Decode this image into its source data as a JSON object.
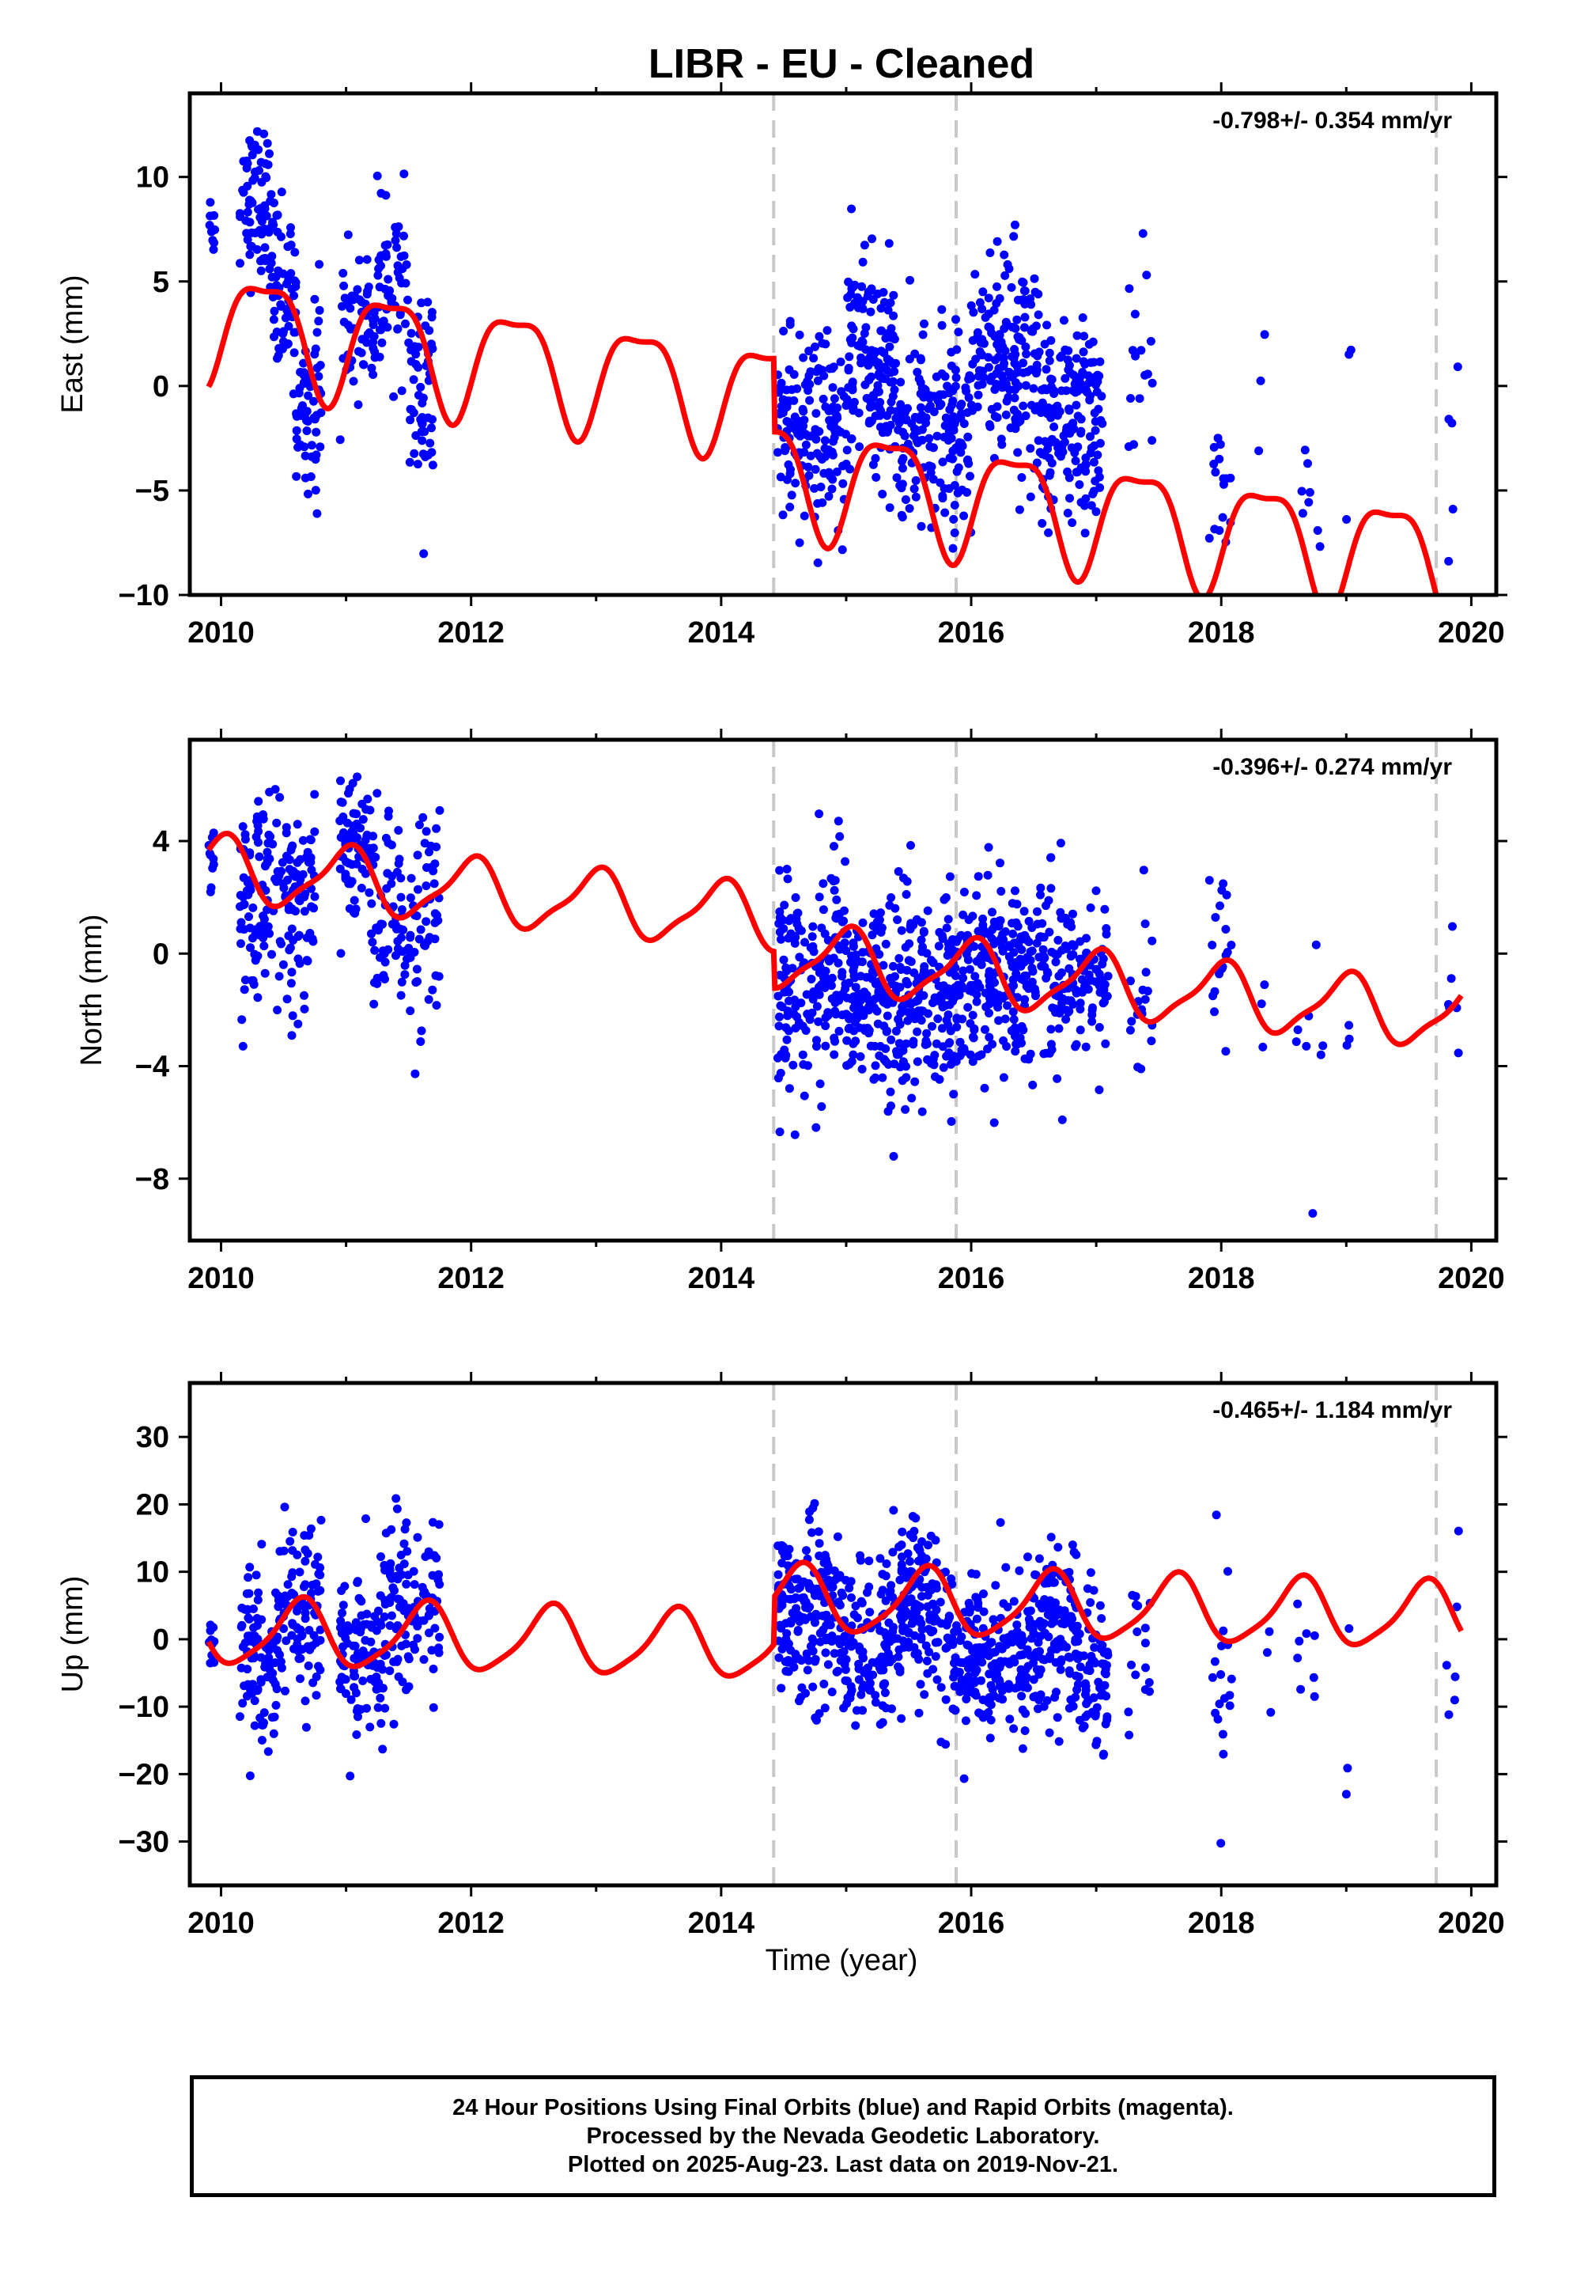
{
  "title": "LIBR  - EU - Cleaned",
  "xlabel": "Time (year)",
  "footer": {
    "line1": "24 Hour Positions Using Final Orbits (blue) and Rapid Orbits (magenta).",
    "line2": "Processed by the Nevada Geodetic Laboratory.",
    "line3": "Plotted on 2025-Aug-23. Last data on 2019-Nov-21."
  },
  "colors": {
    "data": "#0000ff",
    "model": "#ff0000",
    "steps": "#c8c8c8",
    "frame": "#000000"
  },
  "chart_data": [
    {
      "type": "scatter",
      "name": "East",
      "ylabel": "East (mm)",
      "rate_label": "-0.798+/- 0.354 mm/yr",
      "xlim": [
        2009.75,
        2020.2
      ],
      "ylim": [
        -10,
        14
      ],
      "xticks": [
        2010,
        2012,
        2014,
        2016,
        2018,
        2020
      ],
      "yticks": [
        -10,
        -5,
        0,
        5,
        10
      ],
      "ytick_labels": [
        "−10",
        "−5",
        "0",
        "5",
        "10"
      ],
      "step_lines": [
        2014.42,
        2015.88,
        2019.72
      ],
      "model": {
        "offset": 3.0,
        "trend": -0.8,
        "ref": 2010,
        "annual": 2.6,
        "annual_phase": 2010.35,
        "semiannual": 0.8,
        "semi_phase": 2010.1,
        "step_year": 2014.42,
        "step": -3.5
      },
      "clusters": [
        {
          "x0": 2009.9,
          "x1": 2009.95,
          "n": 10,
          "mean": 7.8,
          "sd": 0.8
        },
        {
          "x0": 2010.15,
          "x1": 2010.4,
          "n": 70,
          "mean": 8.8,
          "sd": 1.8
        },
        {
          "x0": 2010.4,
          "x1": 2010.6,
          "n": 60,
          "mean": 4.5,
          "sd": 2.2
        },
        {
          "x0": 2010.6,
          "x1": 2010.8,
          "n": 60,
          "mean": -0.8,
          "sd": 2.3
        },
        {
          "x0": 2010.95,
          "x1": 2011.25,
          "n": 55,
          "mean": 3.0,
          "sd": 1.6
        },
        {
          "x0": 2011.25,
          "x1": 2011.5,
          "n": 55,
          "mean": 4.6,
          "sd": 2.0
        },
        {
          "x0": 2011.5,
          "x1": 2011.7,
          "n": 55,
          "mean": -0.5,
          "sd": 2.6
        },
        {
          "x0": 2014.45,
          "x1": 2015.0,
          "n": 160,
          "mean": -2.2,
          "sd": 2.2
        },
        {
          "x0": 2015.0,
          "x1": 2015.4,
          "n": 150,
          "mean": 0.8,
          "sd": 2.5
        },
        {
          "x0": 2015.4,
          "x1": 2016.0,
          "n": 170,
          "mean": -2.2,
          "sd": 2.3
        },
        {
          "x0": 2016.0,
          "x1": 2016.55,
          "n": 170,
          "mean": 1.5,
          "sd": 2.6
        },
        {
          "x0": 2016.55,
          "x1": 2017.05,
          "n": 170,
          "mean": -2.2,
          "sd": 2.4
        },
        {
          "x0": 2017.25,
          "x1": 2017.45,
          "n": 16,
          "mean": 0.5,
          "sd": 3.0
        },
        {
          "x0": 2017.9,
          "x1": 2018.1,
          "n": 16,
          "mean": -4.0,
          "sd": 2.8
        },
        {
          "x0": 2018.25,
          "x1": 2018.35,
          "n": 3,
          "mean": 1.0,
          "sd": 2.5
        },
        {
          "x0": 2018.6,
          "x1": 2018.8,
          "n": 8,
          "mean": -5.0,
          "sd": 1.2
        },
        {
          "x0": 2019.0,
          "x1": 2019.05,
          "n": 3,
          "mean": -3.5,
          "sd": 3.0
        },
        {
          "x0": 2019.8,
          "x1": 2019.9,
          "n": 6,
          "mean": -2.8,
          "sd": 2.8
        }
      ]
    },
    {
      "type": "scatter",
      "name": "North",
      "ylabel": "North (mm)",
      "rate_label": "-0.396+/- 0.274 mm/yr",
      "xlim": [
        2009.75,
        2020.2
      ],
      "ylim": [
        -10.2,
        7.6
      ],
      "xticks": [
        2010,
        2012,
        2014,
        2016,
        2018,
        2020
      ],
      "yticks": [
        -8,
        -4,
        0,
        4
      ],
      "ytick_labels": [
        "−8",
        "−4",
        "0",
        "4"
      ],
      "step_lines": [
        2014.42,
        2015.88,
        2019.72
      ],
      "model": {
        "offset": 3.0,
        "trend": -0.4,
        "ref": 2010,
        "annual": 1.1,
        "annual_phase": 2010.0,
        "semiannual": 0.3,
        "semi_phase": 2010.1,
        "step_year": 2014.42,
        "step": -1.3
      },
      "clusters": [
        {
          "x0": 2009.9,
          "x1": 2009.95,
          "n": 10,
          "mean": 3.0,
          "sd": 0.6
        },
        {
          "x0": 2010.15,
          "x1": 2010.75,
          "n": 180,
          "mean": 1.8,
          "sd": 1.8
        },
        {
          "x0": 2010.95,
          "x1": 2011.2,
          "n": 70,
          "mean": 4.0,
          "sd": 1.2
        },
        {
          "x0": 2011.2,
          "x1": 2011.75,
          "n": 120,
          "mean": 1.3,
          "sd": 1.9
        },
        {
          "x0": 2014.45,
          "x1": 2015.0,
          "n": 170,
          "mean": -1.0,
          "sd": 2.2
        },
        {
          "x0": 2015.0,
          "x1": 2015.9,
          "n": 330,
          "mean": -1.8,
          "sd": 1.8
        },
        {
          "x0": 2015.9,
          "x1": 2017.1,
          "n": 360,
          "mean": -0.6,
          "sd": 1.6
        },
        {
          "x0": 2017.25,
          "x1": 2017.45,
          "n": 18,
          "mean": -1.8,
          "sd": 2.0
        },
        {
          "x0": 2017.9,
          "x1": 2018.1,
          "n": 18,
          "mean": 0.0,
          "sd": 1.5
        },
        {
          "x0": 2018.3,
          "x1": 2018.4,
          "n": 3,
          "mean": -1.2,
          "sd": 1.5
        },
        {
          "x0": 2018.6,
          "x1": 2018.85,
          "n": 8,
          "mean": -3.0,
          "sd": 3.0
        },
        {
          "x0": 2019.0,
          "x1": 2019.05,
          "n": 3,
          "mean": -2.4,
          "sd": 1.0
        },
        {
          "x0": 2019.8,
          "x1": 2019.9,
          "n": 6,
          "mean": -1.8,
          "sd": 1.5
        }
      ]
    },
    {
      "type": "scatter",
      "name": "Up",
      "ylabel": "Up (mm)",
      "rate_label": "-0.465+/- 1.184 mm/yr",
      "xlim": [
        2009.75,
        2020.2
      ],
      "ylim": [
        -36.5,
        38
      ],
      "xticks": [
        2010,
        2012,
        2014,
        2016,
        2018,
        2020
      ],
      "yticks": [
        -30,
        -20,
        -10,
        0,
        10,
        20,
        30
      ],
      "ytick_labels": [
        "−30",
        "−20",
        "−10",
        "0",
        "10",
        "20",
        "30"
      ],
      "step_lines": [
        2014.42,
        2015.88,
        2019.72
      ],
      "model": {
        "offset": 1.0,
        "trend": -0.47,
        "ref": 2010,
        "annual": 4.8,
        "annual_phase": 2010.63,
        "semiannual": 1.0,
        "semi_phase": 2010.2,
        "step_year": 2014.42,
        "step": 7.0
      },
      "clusters": [
        {
          "x0": 2009.9,
          "x1": 2009.95,
          "n": 10,
          "mean": -1.0,
          "sd": 3.5
        },
        {
          "x0": 2010.15,
          "x1": 2010.45,
          "n": 90,
          "mean": -3.0,
          "sd": 6.5
        },
        {
          "x0": 2010.45,
          "x1": 2010.8,
          "n": 100,
          "mean": 5.0,
          "sd": 6.0
        },
        {
          "x0": 2010.95,
          "x1": 2011.3,
          "n": 100,
          "mean": -3.5,
          "sd": 6.0
        },
        {
          "x0": 2011.3,
          "x1": 2011.75,
          "n": 110,
          "mean": 5.0,
          "sd": 7.0
        },
        {
          "x0": 2014.45,
          "x1": 2014.95,
          "n": 170,
          "mean": 4.0,
          "sd": 6.5
        },
        {
          "x0": 2014.95,
          "x1": 2015.35,
          "n": 120,
          "mean": -1.5,
          "sd": 6.0
        },
        {
          "x0": 2015.35,
          "x1": 2015.85,
          "n": 170,
          "mean": 4.5,
          "sd": 6.5
        },
        {
          "x0": 2015.85,
          "x1": 2016.45,
          "n": 180,
          "mean": -3.5,
          "sd": 5.5
        },
        {
          "x0": 2016.45,
          "x1": 2016.85,
          "n": 140,
          "mean": 1.5,
          "sd": 6.5
        },
        {
          "x0": 2016.85,
          "x1": 2017.1,
          "n": 70,
          "mean": -5.0,
          "sd": 6.0
        },
        {
          "x0": 2017.25,
          "x1": 2017.45,
          "n": 16,
          "mean": -1.0,
          "sd": 8.0
        },
        {
          "x0": 2017.9,
          "x1": 2018.1,
          "n": 18,
          "mean": -8.0,
          "sd": 8.0
        },
        {
          "x0": 2018.3,
          "x1": 2018.4,
          "n": 3,
          "mean": -5.0,
          "sd": 8.0
        },
        {
          "x0": 2018.6,
          "x1": 2018.8,
          "n": 8,
          "mean": 2.0,
          "sd": 8.0
        },
        {
          "x0": 2019.0,
          "x1": 2019.05,
          "n": 3,
          "mean": -8.0,
          "sd": 10.0
        },
        {
          "x0": 2019.8,
          "x1": 2019.9,
          "n": 6,
          "mean": -2.0,
          "sd": 9.0
        }
      ]
    }
  ]
}
